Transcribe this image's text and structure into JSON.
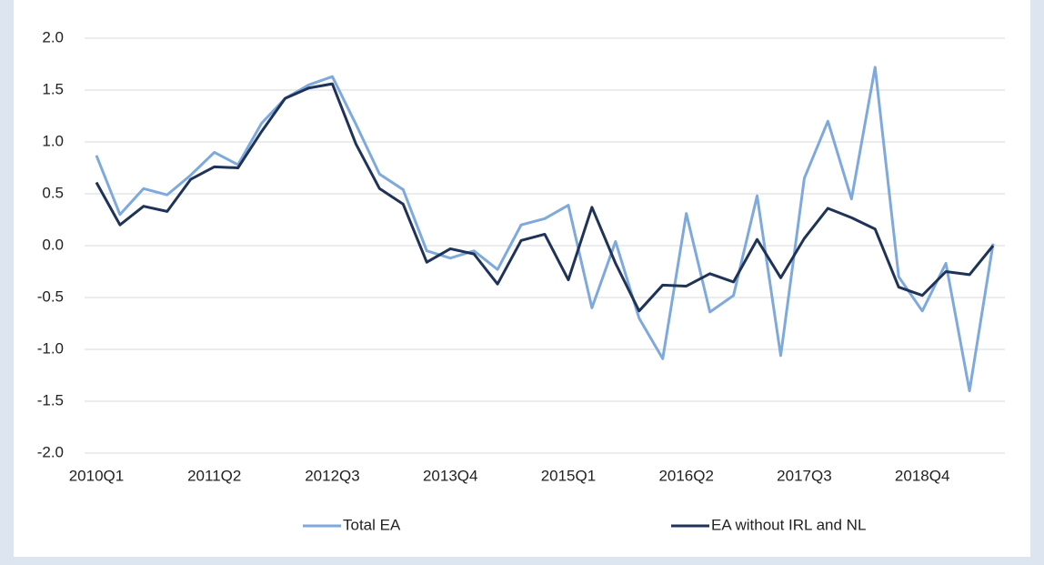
{
  "chart_data": {
    "type": "line",
    "categories": [
      "2010Q1",
      null,
      null,
      null,
      null,
      "2011Q2",
      null,
      null,
      null,
      null,
      "2012Q3",
      null,
      null,
      null,
      null,
      "2013Q4",
      null,
      null,
      null,
      null,
      "2015Q1",
      null,
      null,
      null,
      null,
      "2016Q2",
      null,
      null,
      null,
      null,
      "2017Q3",
      null,
      null,
      null,
      null,
      "2018Q4",
      null,
      null,
      null
    ],
    "series": [
      {
        "name": "Total EA",
        "color": "#7ea9dc",
        "values": [
          0.87,
          0.3,
          0.55,
          0.49,
          0.68,
          0.9,
          0.78,
          1.18,
          1.42,
          1.55,
          1.63,
          1.17,
          0.69,
          0.54,
          -0.05,
          -0.12,
          -0.05,
          -0.23,
          0.2,
          0.26,
          0.39,
          -0.6,
          0.04,
          -0.7,
          -1.09,
          0.31,
          -0.64,
          -0.48,
          0.48,
          -1.06,
          0.65,
          1.2,
          0.45,
          1.72,
          -0.3,
          -0.63,
          -0.17,
          -1.4,
          0.02
        ]
      },
      {
        "name": "EA without IRL and NL",
        "color": "#1f3358",
        "values": [
          0.61,
          0.2,
          0.38,
          0.33,
          0.64,
          0.76,
          0.75,
          1.1,
          1.42,
          1.52,
          1.56,
          0.98,
          0.55,
          0.4,
          -0.16,
          -0.03,
          -0.08,
          -0.37,
          0.05,
          0.11,
          -0.33,
          0.37,
          -0.17,
          -0.63,
          -0.38,
          -0.39,
          -0.27,
          -0.35,
          0.06,
          -0.31,
          0.07,
          0.36,
          0.27,
          0.16,
          -0.4,
          -0.48,
          -0.25,
          -0.28,
          0.0
        ]
      }
    ],
    "ylim": [
      -2.0,
      2.0
    ],
    "yticks": [
      {
        "value": -2,
        "label": "-2.0"
      },
      {
        "value": -1.5,
        "label": "-1.5"
      },
      {
        "value": -1,
        "label": "-1.0"
      },
      {
        "value": -0.5,
        "label": "-0.5"
      },
      {
        "value": 0,
        "label": "0.0"
      },
      {
        "value": 0.5,
        "label": "0.5"
      },
      {
        "value": 1,
        "label": "1.0"
      },
      {
        "value": 1.5,
        "label": "1.5"
      },
      {
        "value": 2,
        "label": "2.0"
      }
    ],
    "grid": true,
    "legend": "bottom"
  }
}
